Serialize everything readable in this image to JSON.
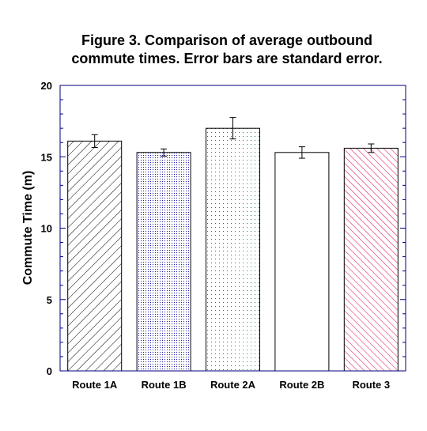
{
  "chart_data": {
    "type": "bar",
    "title_lines": [
      "Figure 3. Comparison of average outbound",
      "commute times. Error bars are standard error."
    ],
    "xlabel": "",
    "ylabel": "Commute Time (m)",
    "ylim": [
      0,
      20
    ],
    "yticks": [
      0,
      5,
      10,
      15,
      20
    ],
    "grid": false,
    "categories": [
      "Route 1A",
      "Route 1B",
      "Route 2A",
      "Route 2B",
      "Route 3"
    ],
    "values": [
      16.1,
      15.3,
      17.0,
      15.3,
      15.6
    ],
    "errors": [
      0.45,
      0.25,
      0.75,
      0.4,
      0.3
    ],
    "bar_fills": [
      "diagonal-hatch",
      "dense-dots",
      "sparse-dots",
      "solid-white",
      "diagonal-hatch-red"
    ],
    "colors": {
      "axis": "#000080",
      "bar_outline": "#000000",
      "hatch_black": "#000000",
      "dots_blue": "#1a1aa6",
      "dots_teal": "#1f7a6a",
      "hatch_red": "#e0004c"
    }
  }
}
